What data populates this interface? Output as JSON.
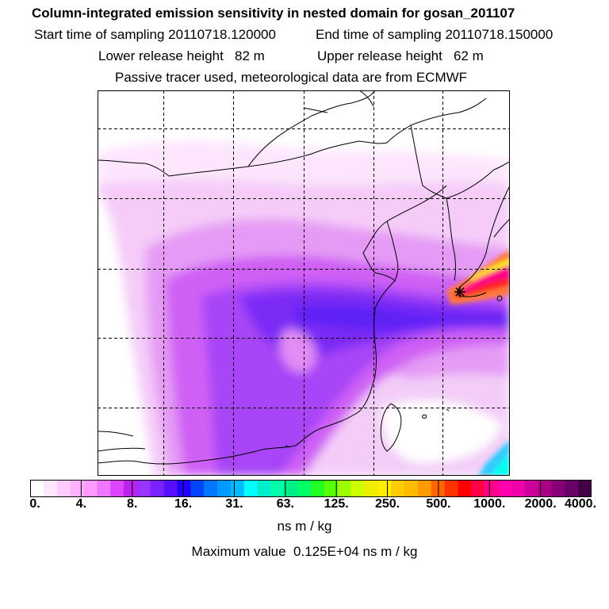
{
  "header": {
    "title": "Column-integrated emission sensitivity in nested domain for gosan_201107",
    "start_label": "Start time of sampling 20110718.120000",
    "end_label": "End time of sampling 20110718.150000",
    "lower_label": "Lower release height   82 m",
    "upper_label": "Upper release height   62 m",
    "tracer_label": "Passive tracer used, meteorological data are from ECMWF"
  },
  "map": {
    "name": "emission-sensitivity-map",
    "release_marker": "star-asterisk-icon"
  },
  "colorbar": {
    "tick_labels": [
      "0.",
      "4.",
      "8.",
      "16.",
      "31.",
      "63.",
      "125.",
      "250.",
      "500.",
      "1000.",
      "2000.",
      "4000."
    ],
    "colors": [
      "#ffffff",
      "#ffe6ff",
      "#ffccff",
      "#ffb3ff",
      "#ff99ff",
      "#ee77ff",
      "#dd44ff",
      "#bb22ee",
      "#9933ff",
      "#7722ff",
      "#5511ff",
      "#2200ff",
      "#0044ff",
      "#0077ff",
      "#0099ff",
      "#00bbff",
      "#00ffff",
      "#00eecc",
      "#00ffaa",
      "#00ee88",
      "#00ff66",
      "#22ff22",
      "#55ff00",
      "#99ff00",
      "#ccff00",
      "#eeee00",
      "#ffee00",
      "#ffcc00",
      "#ffbb00",
      "#ff9900",
      "#ff6600",
      "#ff3300",
      "#ff0000",
      "#ff0044",
      "#ff0088",
      "#ff00aa",
      "#ee00aa",
      "#cc0099",
      "#aa0088",
      "#880077",
      "#660066",
      "#440044"
    ],
    "units": "ns m / kg",
    "max_label": "Maximum value  0.125E+04 ns m / kg"
  }
}
